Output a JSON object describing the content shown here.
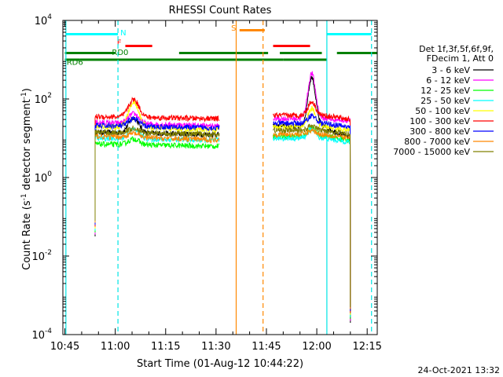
{
  "chart_data": {
    "type": "line",
    "title": "RHESSI Count Rates",
    "xlabel": "Start Time (01-Aug-12 10:44:22)",
    "ylabel_main": "Count Rate (s",
    "ylabel_sup1": "-1",
    "ylabel_mid": " detector segment",
    "ylabel_sup2": "-1",
    "ylabel_end": ")",
    "x_unit": "minutes of day",
    "xlim": [
      644.4,
      738
    ],
    "ylim_log10": [
      -4,
      4
    ],
    "x_ticks": [
      {
        "label": "10:45",
        "value": 645
      },
      {
        "label": "11:00",
        "value": 660
      },
      {
        "label": "11:15",
        "value": 675
      },
      {
        "label": "11:30",
        "value": 690
      },
      {
        "label": "11:45",
        "value": 705
      },
      {
        "label": "12:00",
        "value": 720
      },
      {
        "label": "12:15",
        "value": 735
      }
    ],
    "y_ticks": [
      {
        "base": "10",
        "exp": "4",
        "value": 4
      },
      {
        "base": "10",
        "exp": "2",
        "value": 2
      },
      {
        "base": "10",
        "exp": "0",
        "value": 0
      },
      {
        "base": "10",
        "exp": "-2",
        "value": -2
      },
      {
        "base": "10",
        "exp": "-4",
        "value": -4
      }
    ],
    "legend_header": [
      "Det 1f,3f,5f,6f,9f,",
      "FDecim 1, Att 0"
    ],
    "series": [
      {
        "name": "3 - 6 keV",
        "color": "#000000",
        "base1": 1.15,
        "peak1": 0.38,
        "base2": 1.3,
        "peak2": 1.25,
        "drop2": 0.3
      },
      {
        "name": "6 - 12 keV",
        "color": "#ff00ff",
        "base1": 1.4,
        "peak1": 0.25,
        "base2": 1.5,
        "peak2": 1.15,
        "drop2": 0.05
      },
      {
        "name": "12 - 25 keV",
        "color": "#00ff00",
        "base1": 0.85,
        "peak1": 0.15,
        "base2": 1.05,
        "peak2": 0.2,
        "drop2": 0.1
      },
      {
        "name": "25 - 50 keV",
        "color": "#00ffff",
        "base1": 1.0,
        "peak1": 0.25,
        "base2": 1.0,
        "peak2": 0.25,
        "drop2": 0.1
      },
      {
        "name": "50 - 100 keV",
        "color": "#ffff00",
        "base1": 1.3,
        "peak1": 0.65,
        "base2": 1.3,
        "peak2": 0.45,
        "drop2": 0.1
      },
      {
        "name": "100 - 300 keV",
        "color": "#ff0000",
        "base1": 1.55,
        "peak1": 0.45,
        "base2": 1.58,
        "peak2": 0.35,
        "drop2": 0.1
      },
      {
        "name": "300 - 800 keV",
        "color": "#0000ff",
        "base1": 1.32,
        "peak1": 0.2,
        "base2": 1.38,
        "peak2": 0.2,
        "drop2": 0.1
      },
      {
        "name": "800 - 7000 keV",
        "color": "#ff8800",
        "base1": 1.05,
        "peak1": 0.1,
        "base2": 1.1,
        "peak2": 0.1,
        "drop2": 0.1
      },
      {
        "name": "7000 - 15000 keV",
        "color": "#808000",
        "base1": 1.15,
        "peak1": 0.12,
        "base2": 1.2,
        "peak2": 0.12,
        "drop2": 0.1
      }
    ],
    "segments": {
      "seg1_start": 654.0,
      "seg1_end": 691.0,
      "seg2_start": 707.0,
      "seg2_end": 730.0,
      "peak1_time": 665.5,
      "peak2_time": 718.5
    },
    "vertical_lines": [
      {
        "x": 645.3,
        "color": "#00e5e5",
        "style": "solid"
      },
      {
        "x": 660.8,
        "color": "#00e5e5",
        "style": "dashed"
      },
      {
        "x": 696.0,
        "color": "#ff8800",
        "style": "solid"
      },
      {
        "x": 704.0,
        "color": "#ff8800",
        "style": "dashed"
      },
      {
        "x": 723.0,
        "color": "#00e5e5",
        "style": "solid"
      },
      {
        "x": 736.3,
        "color": "#00e5e5",
        "style": "dashed"
      }
    ],
    "flag_bars": [
      {
        "label": "N",
        "color": "#00ffff",
        "y": 3.65,
        "ranges": [
          [
            645.3,
            660.8
          ],
          [
            723.0,
            736.3
          ]
        ],
        "label_x": 661.5,
        "label_y": 3.7
      },
      {
        "label": "F",
        "color": "#ff0000",
        "y": 3.35,
        "ranges": [
          [
            663.0,
            671.0
          ],
          [
            707.0,
            718.0
          ]
        ],
        "label_x": 660.5,
        "label_y": 3.45
      },
      {
        "label": "S",
        "color": "#ff8800",
        "y": 3.75,
        "ranges": [
          [
            697.0,
            704.5
          ]
        ],
        "label_x": 694.5,
        "label_y": 3.82
      },
      {
        "label": "RD0",
        "color": "#008000",
        "y": 3.17,
        "ranges": [
          [
            645.0,
            660.0
          ],
          [
            679.0,
            705.5
          ],
          [
            709.0,
            721.5
          ],
          [
            726.0,
            738.0
          ]
        ],
        "label_x": 659.0,
        "label_y": 3.2
      },
      {
        "label": "RD6",
        "color": "#008000",
        "y": 3.0,
        "ranges": [
          [
            645.0,
            649.5
          ],
          [
            649.5,
            710.0
          ],
          [
            710.0,
            723.0
          ]
        ],
        "label_x": 645.5,
        "label_y": 2.95
      }
    ]
  },
  "footer_date": "24-Oct-2021 13:32"
}
